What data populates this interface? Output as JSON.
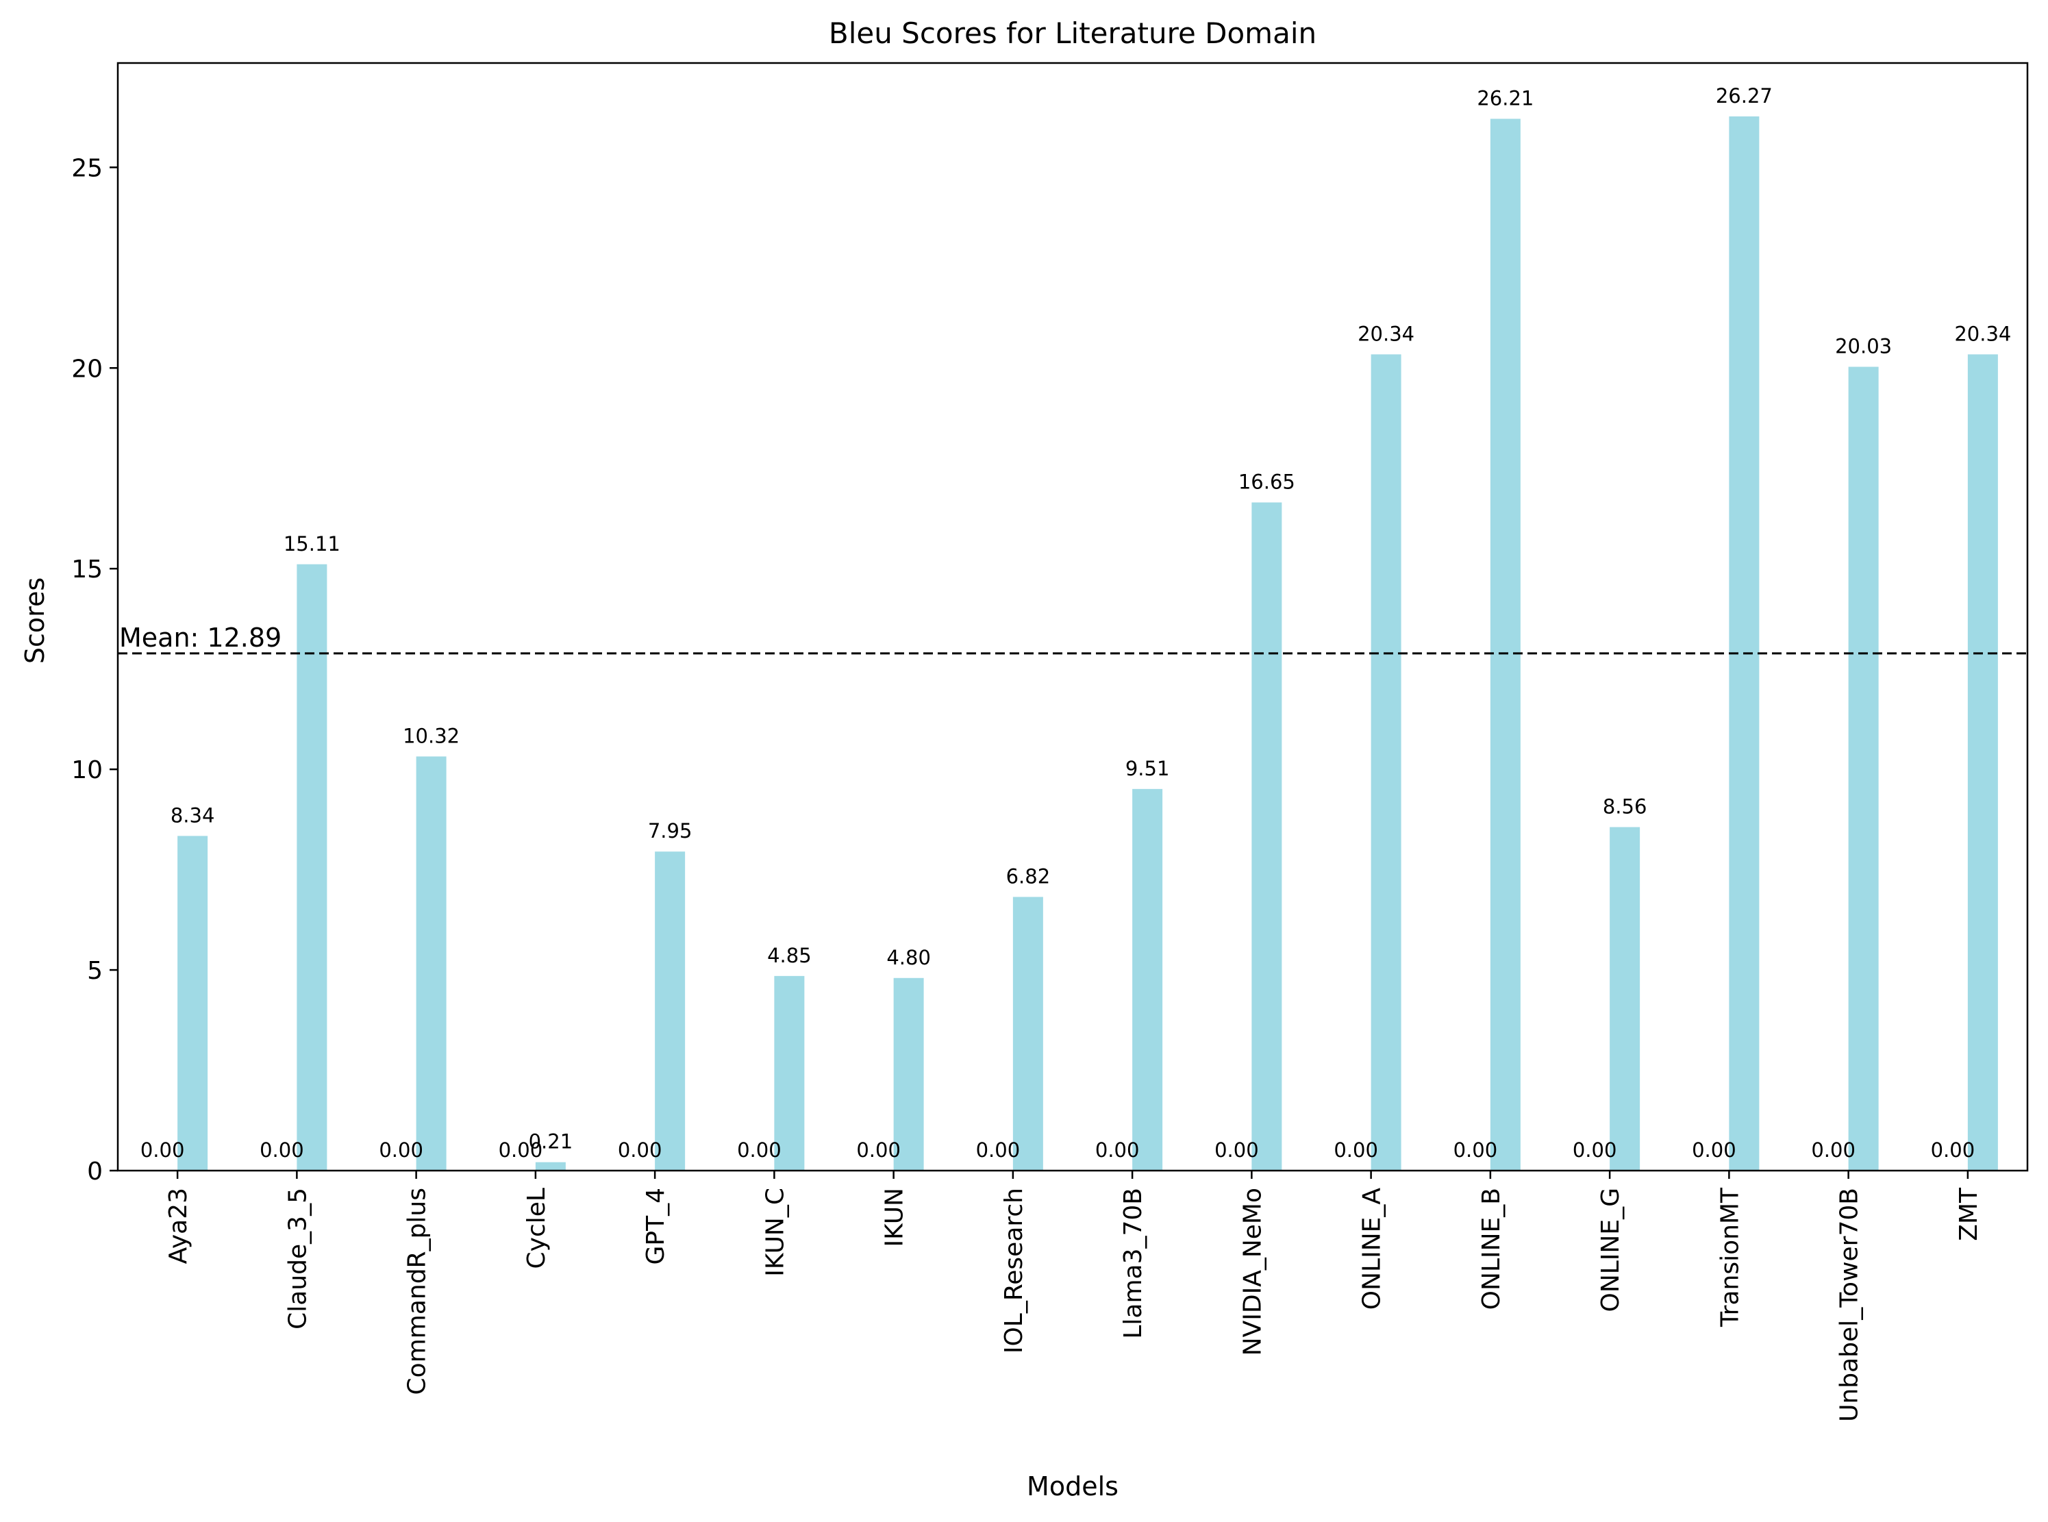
{
  "chart_data": {
    "type": "bar",
    "title": "Bleu Scores for Literature Domain",
    "xlabel": "Models",
    "ylabel": "Scores",
    "ylim": [
      0,
      27.6
    ],
    "yticks": [
      0,
      5,
      10,
      15,
      20,
      25
    ],
    "ytick_labels": [
      "0",
      "5",
      "10",
      "15",
      "20",
      "25"
    ],
    "categories": [
      "Aya23",
      "Claude_3_5",
      "CommandR_plus",
      "CycleL",
      "GPT_4",
      "IKUN_C",
      "IKUN",
      "IOL_Research",
      "Llama3_70B",
      "NVIDIA_NeMo",
      "ONLINE_A",
      "ONLINE_B",
      "ONLINE_G",
      "TransionMT",
      "Unbabel_Tower70B",
      "ZMT"
    ],
    "series": [
      {
        "name": "series_1",
        "color": "#ffffff",
        "values": [
          0,
          0,
          0,
          0,
          0,
          0,
          0,
          0,
          0,
          0,
          0,
          0,
          0,
          0,
          0,
          0
        ],
        "labels": [
          "0.00",
          "0.00",
          "0.00",
          "0.00",
          "0.00",
          "0.00",
          "0.00",
          "0.00",
          "0.00",
          "0.00",
          "0.00",
          "0.00",
          "0.00",
          "0.00",
          "0.00",
          "0.00"
        ]
      },
      {
        "name": "series_2",
        "color": "#a0dae5",
        "values": [
          8.34,
          15.11,
          10.32,
          0.21,
          7.95,
          4.85,
          4.8,
          6.82,
          9.51,
          16.65,
          20.34,
          26.21,
          8.56,
          26.27,
          20.03,
          20.34
        ],
        "labels": [
          "8.34",
          "15.11",
          "10.32",
          "0.21",
          "7.95",
          "4.85",
          "4.80",
          "6.82",
          "9.51",
          "16.65",
          "20.34",
          "26.21",
          "8.56",
          "26.27",
          "20.03",
          "20.34"
        ]
      }
    ],
    "mean_line": {
      "value": 12.89,
      "label": "Mean: 12.89",
      "style": "dashed",
      "color": "#000000"
    },
    "grid": false,
    "legend": "none"
  }
}
